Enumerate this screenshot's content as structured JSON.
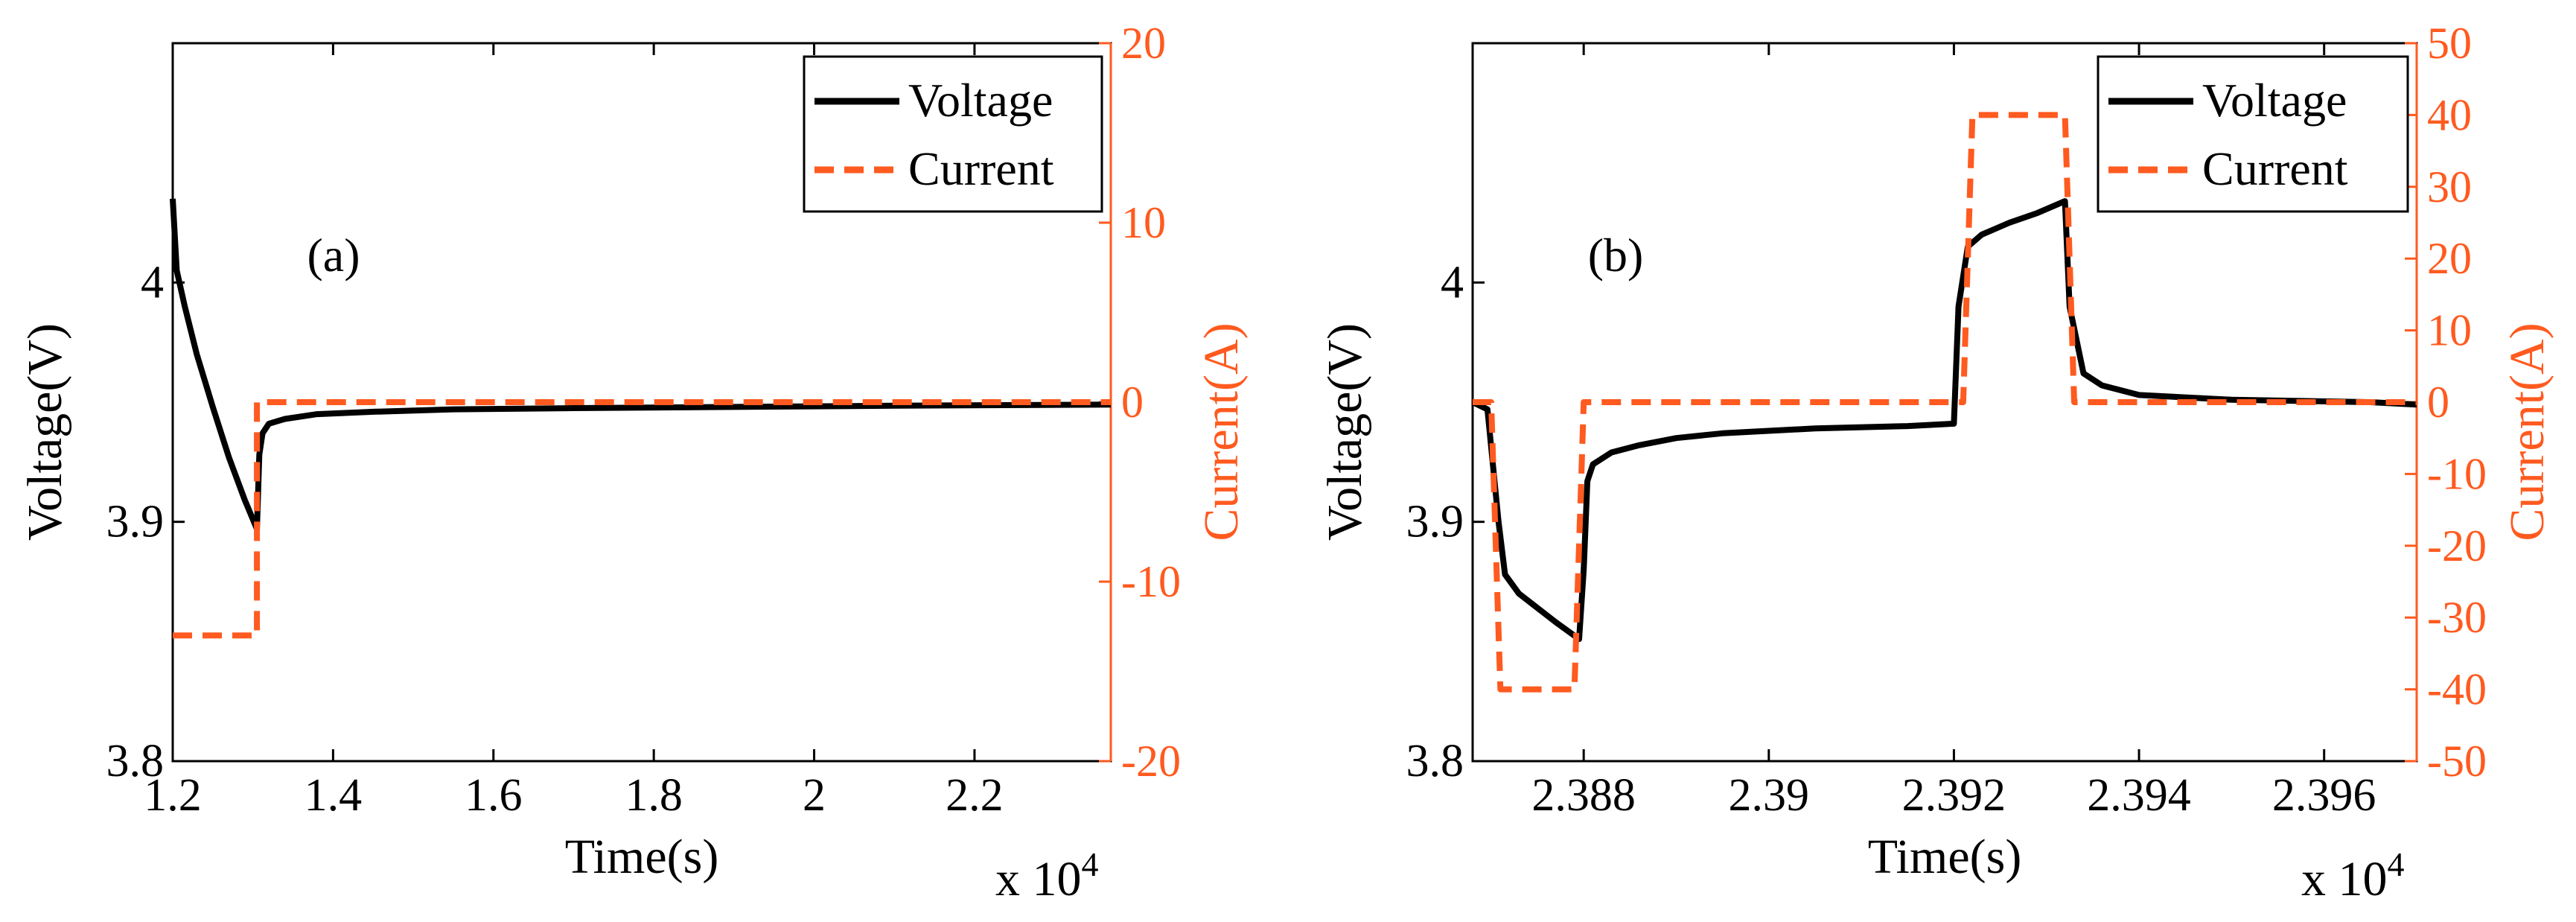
{
  "colors": {
    "voltage": "#000000",
    "current": "#ff5a1f",
    "axis": "#000000",
    "background": "#ffffff"
  },
  "chart_data": [
    {
      "type": "line",
      "panel_label": "(a)",
      "xlabel": "Time(s)",
      "x_multiplier_label": "x 10",
      "x_multiplier_exponent": "4",
      "xlim": [
        1.2,
        2.37
      ],
      "x_ticks": [
        1.2,
        1.4,
        1.6,
        1.8,
        2.0,
        2.2
      ],
      "x_tick_labels": [
        "1.2",
        "1.4",
        "1.6",
        "1.8",
        "2",
        "2.2"
      ],
      "ylabel_left": "Voltage(V)",
      "ylim_left": [
        3.8,
        4.1
      ],
      "y_ticks_left": [
        3.8,
        3.9,
        4.0
      ],
      "y_tick_labels_left": [
        "3.8",
        "3.9",
        "4"
      ],
      "ylabel_right": "Current(A)",
      "ylim_right": [
        -20,
        20
      ],
      "y_ticks_right": [
        -20,
        -10,
        0,
        10,
        20
      ],
      "y_tick_labels_right": [
        "-20",
        "-10",
        "0",
        "10",
        "20"
      ],
      "legend": [
        "Voltage",
        "Current"
      ],
      "legend_position": "top-right",
      "series": [
        {
          "name": "Voltage",
          "axis": "left",
          "style": "solid",
          "x": [
            1.2,
            1.205,
            1.215,
            1.23,
            1.25,
            1.27,
            1.29,
            1.305,
            1.308,
            1.312,
            1.32,
            1.34,
            1.38,
            1.45,
            1.55,
            1.7,
            1.9,
            2.1,
            2.37
          ],
          "y": [
            4.035,
            4.005,
            3.99,
            3.97,
            3.948,
            3.927,
            3.909,
            3.897,
            3.928,
            3.937,
            3.941,
            3.943,
            3.945,
            3.946,
            3.947,
            3.9475,
            3.948,
            3.9485,
            3.949
          ]
        },
        {
          "name": "Current",
          "axis": "right",
          "style": "dashed",
          "x": [
            1.2,
            1.305,
            1.305,
            2.37
          ],
          "y": [
            -13,
            -13,
            0,
            0
          ]
        }
      ]
    },
    {
      "type": "line",
      "panel_label": "(b)",
      "xlabel": "Time(s)",
      "x_multiplier_label": "x 10",
      "x_multiplier_exponent": "4",
      "xlim": [
        2.3868,
        2.397
      ],
      "x_ticks": [
        2.388,
        2.39,
        2.392,
        2.394,
        2.396
      ],
      "x_tick_labels": [
        "2.388",
        "2.39",
        "2.392",
        "2.394",
        "2.396"
      ],
      "ylabel_left": "Voltage(V)",
      "ylim_left": [
        3.8,
        4.1
      ],
      "y_ticks_left": [
        3.8,
        3.9,
        4.0
      ],
      "y_tick_labels_left": [
        "3.8",
        "3.9",
        "4"
      ],
      "ylabel_right": "Current(A)",
      "ylim_right": [
        -50,
        50
      ],
      "y_ticks_right": [
        -50,
        -40,
        -30,
        -20,
        -10,
        0,
        10,
        20,
        30,
        40,
        50
      ],
      "y_tick_labels_right": [
        "-50",
        "-40",
        "-30",
        "-20",
        "-10",
        "0",
        "10",
        "20",
        "30",
        "40",
        "50"
      ],
      "legend": [
        "Voltage",
        "Current"
      ],
      "legend_position": "top-right",
      "series": [
        {
          "name": "Voltage",
          "axis": "left",
          "style": "solid",
          "x": [
            2.3868,
            2.38696,
            2.38708,
            2.38715,
            2.3873,
            2.3875,
            2.3877,
            2.38795,
            2.388,
            2.38804,
            2.3881,
            2.3883,
            2.3886,
            2.389,
            2.3895,
            2.3905,
            2.3915,
            2.392,
            2.39205,
            2.39215,
            2.3923,
            2.3926,
            2.3929,
            2.3932,
            2.39325,
            2.3934,
            2.3936,
            2.394,
            2.395,
            2.3965,
            2.397
          ],
          "y": [
            3.95,
            3.947,
            3.9,
            3.878,
            3.87,
            3.864,
            3.858,
            3.851,
            3.88,
            3.917,
            3.924,
            3.929,
            3.932,
            3.935,
            3.937,
            3.939,
            3.94,
            3.941,
            3.99,
            4.015,
            4.02,
            4.025,
            4.029,
            4.034,
            3.99,
            3.962,
            3.957,
            3.953,
            3.951,
            3.95,
            3.949
          ]
        },
        {
          "name": "Current",
          "axis": "right",
          "style": "dashed",
          "x": [
            2.3868,
            2.387,
            2.3871,
            2.3879,
            2.388,
            2.3921,
            2.3922,
            2.3932,
            2.3933,
            2.397
          ],
          "y": [
            0,
            0,
            -40,
            -40,
            0,
            0,
            40,
            40,
            0,
            0
          ]
        }
      ]
    }
  ]
}
